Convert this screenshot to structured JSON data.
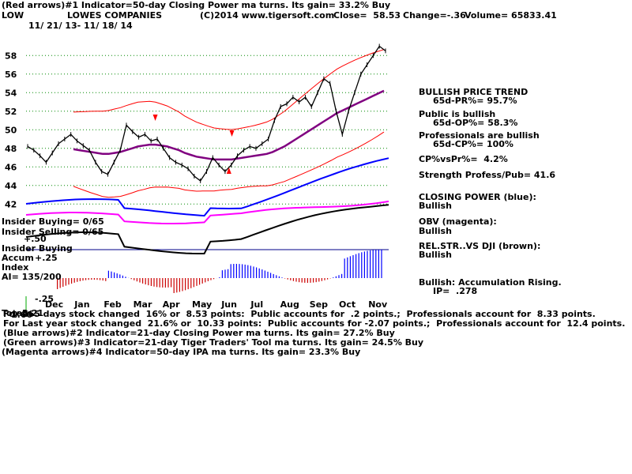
{
  "header": {
    "line1": "(Red arrows)#1 Indicator=50-day Closing Power ma turns. Its gain= 33.2% Buy",
    "symbol": "LOW",
    "company": "LOWES COMPANIES",
    "copyright": "(C)2014 www.tigersoft.com",
    "close": "Close=  58.53",
    "change": "Change=-.36",
    "volume": "Volume= 65833.41",
    "daterange": "11/ 21/ 13- 11/ 18/ 14"
  },
  "right_panel": {
    "trend_title": "BULLISH PRICE TREND",
    "pr": "65d-PR%= 95.7%",
    "public": "Public is bullish",
    "op": "65d-OP%= 58.3%",
    "pros": "Professionals are bullish",
    "cp": "65d-CP%= 100%",
    "cpvspr": "CP%vsPr%=  4.2%",
    "strength": "Strength Profess/Pub= 41.6",
    "closing_power": "CLOSING POWER (blue):",
    "cp_state": "Bullish",
    "obv": "OBV (magenta):",
    "obv_state": "Bullish",
    "relstr": "REL.STR..VS DJI (brown):",
    "relstr_state": "Bullish",
    "accum": "Bullish: Accumulation Rising.",
    "ip": "IP=  .278"
  },
  "left_panel": {
    "insider_buying": "Insider Buying= 0/65",
    "insider_selling": "Insider Selling= 0/65",
    "plus50": "+.50",
    "insider_buying2": "Insider Buying",
    "accum": "Accum",
    "plus25": "+.25",
    "index": "Index",
    "ai": "AI= 135/200",
    "minus25": "-.25"
  },
  "footer": {
    "overlap1": "Total",
    "overlap2": "1.60",
    "overlap3": "8.21",
    "line1": "For 265 days stock changed  16% or  8.53 points:  Public accounts for  .2 points.;  Professionals account for  8.33 points.",
    "line2": "For Last year stock changed  21.6% or  10.33 points:  Public accounts for -2.07 points.;  Professionals account for  12.4 points.",
    "line3": "(Blue arrows)#2 Indicator=21-day Closing Power ma turns. Its gain= 27.2% Buy",
    "line4": "(Green arrows)#3 Indicator=21-day Tiger Traders' Tool ma turns. Its gain= 24.5% Buy",
    "line5": "(Magenta arrows)#4 Indicator=50-day IPA ma turns. Its gain= 23.3% Buy"
  },
  "chart_data": {
    "type": "line",
    "title": "LOWES COMPANIES",
    "x_ticks": [
      "Dec",
      "Jan",
      "Feb",
      "Mar",
      "Apr",
      "May",
      "Jun",
      "Jul",
      "Aug",
      "Sep",
      "Oct",
      "Nov"
    ],
    "y_ticks": [
      42,
      44,
      46,
      48,
      50,
      52,
      54,
      56,
      58
    ],
    "ylim": [
      41,
      61
    ],
    "price": [
      48.2,
      47.8,
      47.2,
      46.5,
      47.5,
      48.5,
      49,
      49.5,
      48.8,
      48.3,
      47.8,
      46.5,
      45.5,
      45.2,
      46.5,
      47.8,
      50.5,
      49.8,
      49.2,
      49.5,
      48.8,
      49,
      48,
      47,
      46.5,
      46.2,
      45.8,
      45,
      44.5,
      45.5,
      47,
      46.2,
      45.5,
      46.2,
      47.2,
      47.8,
      48.2,
      48,
      48.5,
      49,
      51,
      52.5,
      52.8,
      53.5,
      53,
      53.5,
      52.5,
      54,
      55.5,
      55,
      52,
      49.5,
      52,
      54,
      56,
      57,
      58,
      59,
      58.5
    ],
    "ma": [
      47.9,
      47.8,
      47.7,
      47.6,
      47.5,
      47.4,
      47.4,
      47.5,
      47.6,
      47.8,
      48,
      48.2,
      48.3,
      48.4,
      48.4,
      48.3,
      48.2,
      48,
      47.8,
      47.5,
      47.3,
      47.1,
      47,
      46.9,
      46.8,
      46.8,
      46.8,
      46.8,
      46.9,
      47,
      47.1,
      47.2,
      47.3,
      47.4,
      47.6,
      47.9,
      48.2,
      48.6,
      49,
      49.4,
      49.8,
      50.2,
      50.6,
      51,
      51.4,
      51.8,
      52.1,
      52.4,
      52.7,
      53,
      53.3,
      53.6,
      53.9,
      54.2
    ],
    "series": [
      {
        "name": "CLOSING POWER (blue)",
        "color": "#0000ff"
      },
      {
        "name": "OBV (magenta)",
        "color": "#ff00ff"
      },
      {
        "name": "REL.STR..VS DJI (brown)",
        "color": "#000000"
      }
    ],
    "arrows": [
      {
        "month_index": 3.5,
        "direction": "down",
        "color": "#ff0000"
      },
      {
        "month_index": 6.1,
        "direction": "down",
        "color": "#ff0000"
      },
      {
        "month_index": 6.0,
        "direction": "up",
        "color": "#ff0000"
      }
    ],
    "grid": true
  }
}
